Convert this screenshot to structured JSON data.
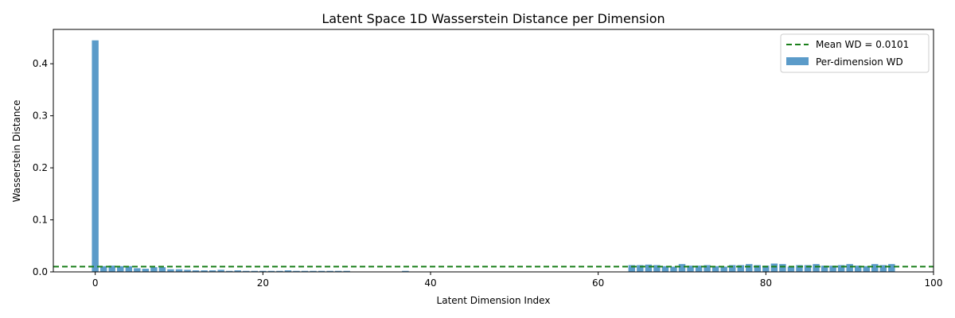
{
  "chart_data": {
    "type": "bar",
    "title": "Latent Space 1D Wasserstein Distance per Dimension",
    "xlabel": "Latent Dimension Index",
    "ylabel": "Wasserstein Distance",
    "xlim": [
      -5,
      100
    ],
    "ylim": [
      0,
      0.466
    ],
    "xticks": [
      0,
      20,
      40,
      60,
      80,
      100
    ],
    "yticks": [
      0.0,
      0.1,
      0.2,
      0.3,
      0.4
    ],
    "xtick_labels": [
      "0",
      "20",
      "40",
      "60",
      "80",
      "100"
    ],
    "ytick_labels": [
      "0.0",
      "0.1",
      "0.2",
      "0.3",
      "0.4"
    ],
    "grid": false,
    "legend_position": "top-right",
    "bar_color": "#5b9bc9",
    "mean_line_color": "#1a7f1a",
    "series": [
      {
        "name": "Per-dimension WD",
        "x": [
          0,
          1,
          2,
          3,
          4,
          5,
          6,
          7,
          8,
          9,
          10,
          11,
          12,
          13,
          14,
          15,
          16,
          17,
          18,
          19,
          20,
          21,
          22,
          23,
          24,
          25,
          26,
          27,
          28,
          29,
          30,
          31,
          32,
          33,
          34,
          35,
          36,
          37,
          38,
          39,
          40,
          41,
          42,
          43,
          44,
          45,
          46,
          47,
          48,
          49,
          50,
          51,
          52,
          53,
          54,
          55,
          56,
          57,
          58,
          59,
          60,
          61,
          62,
          63,
          64,
          65,
          66,
          67,
          68,
          69,
          70,
          71,
          72,
          73,
          74,
          75,
          76,
          77,
          78,
          79,
          80,
          81,
          82,
          83,
          84,
          85,
          86,
          87,
          88,
          89,
          90,
          91,
          92,
          93,
          94,
          95
        ],
        "values": [
          0.445,
          0.011,
          0.012,
          0.011,
          0.011,
          0.007,
          0.006,
          0.009,
          0.009,
          0.005,
          0.005,
          0.004,
          0.003,
          0.003,
          0.003,
          0.004,
          0.002,
          0.003,
          0.002,
          0.002,
          0.002,
          0.002,
          0.002,
          0.003,
          0.002,
          0.002,
          0.002,
          0.002,
          0.002,
          0.002,
          0.002,
          0.0,
          0.0,
          0.0,
          0.0,
          0.0,
          0.0,
          0.002,
          0.0,
          0.0,
          0.0,
          0.0,
          0.0,
          0.0,
          0.0,
          0.0,
          0.0,
          0.0,
          0.0,
          0.0,
          0.0,
          0.0,
          0.0,
          0.0,
          0.0,
          0.0,
          0.0,
          0.0,
          0.0,
          0.0,
          0.0,
          0.0,
          0.0,
          0.0,
          0.013,
          0.013,
          0.014,
          0.013,
          0.011,
          0.01,
          0.015,
          0.012,
          0.012,
          0.013,
          0.011,
          0.01,
          0.013,
          0.013,
          0.015,
          0.013,
          0.012,
          0.016,
          0.015,
          0.01,
          0.013,
          0.013,
          0.015,
          0.012,
          0.012,
          0.013,
          0.015,
          0.012,
          0.011,
          0.015,
          0.013,
          0.015
        ]
      }
    ],
    "mean_line": {
      "name": "Mean WD = 0.0101",
      "value": 0.0101
    },
    "legend": [
      {
        "label": "Mean WD = 0.0101",
        "kind": "dashed-line"
      },
      {
        "label": "Per-dimension WD",
        "kind": "bar"
      }
    ]
  }
}
